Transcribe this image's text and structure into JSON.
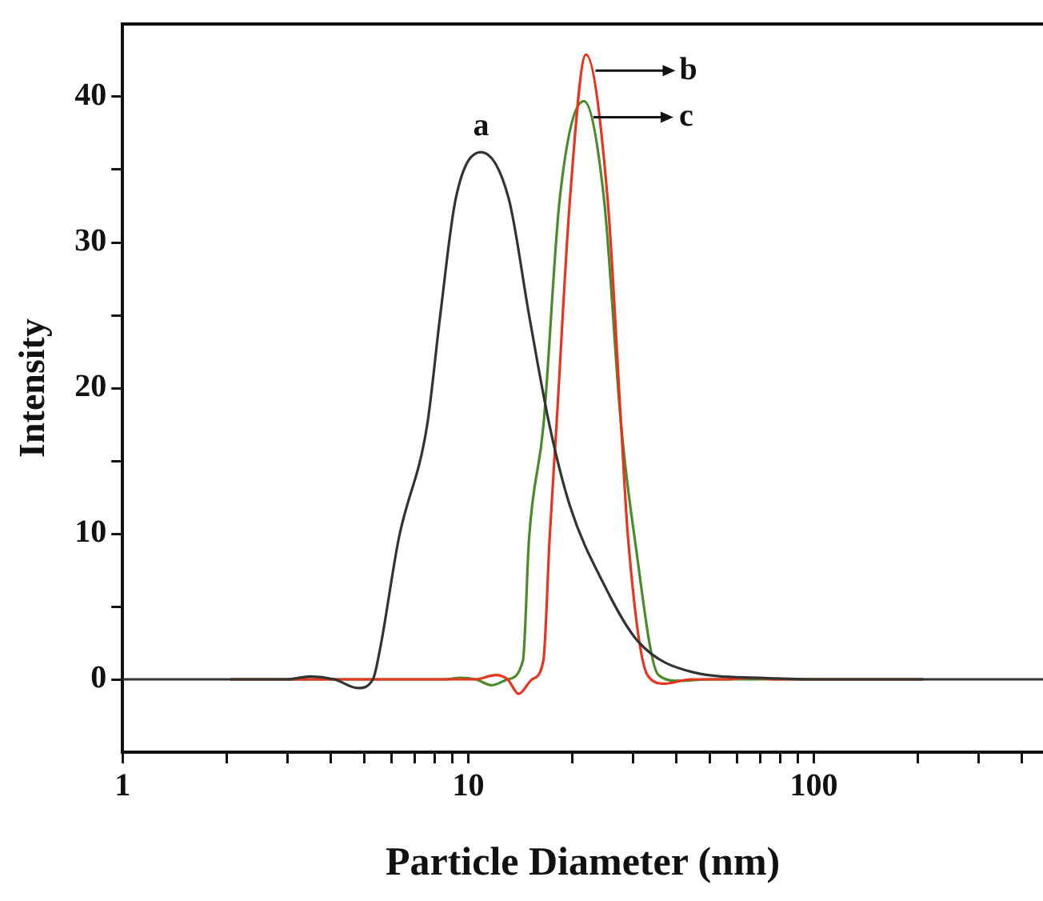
{
  "chart_data": {
    "type": "line",
    "xlabel": "Particle Diameter (nm)",
    "ylabel": "Intensity",
    "log": "x",
    "xlim": [
      1,
      460
    ],
    "ylim": [
      -5,
      45
    ],
    "xticks": [
      1,
      {
        "value": 2,
        "label": null
      },
      {
        "value": 3,
        "label": null
      },
      {
        "value": 4,
        "label": null
      },
      {
        "value": 5,
        "label": null
      },
      {
        "value": 6,
        "label": null
      },
      {
        "value": 7,
        "label": null
      },
      {
        "value": 8,
        "label": null
      },
      {
        "value": 9,
        "label": null
      },
      10,
      {
        "value": 20,
        "label": null
      },
      {
        "value": 30,
        "label": null
      },
      {
        "value": 40,
        "label": null
      },
      {
        "value": 50,
        "label": null
      },
      {
        "value": 60,
        "label": null
      },
      {
        "value": 70,
        "label": null
      },
      {
        "value": 80,
        "label": null
      },
      {
        "value": 90,
        "label": null
      },
      100,
      {
        "value": 200,
        "label": null
      },
      {
        "value": 300,
        "label": null
      },
      {
        "value": 400,
        "label": null
      }
    ],
    "yticks": [
      0,
      {
        "value": 5,
        "label": null
      },
      10,
      {
        "value": 15,
        "label": null
      },
      20,
      {
        "value": 25,
        "label": null
      },
      30,
      {
        "value": 35,
        "label": null
      },
      40
    ],
    "legend": false,
    "marker": "none",
    "line_style": "solid",
    "series": [
      {
        "color": "#333333",
        "x": [
          1,
          3,
          3.5,
          4.1,
          4.8,
          5.3,
          5.56,
          6.3,
          7.6,
          8.3,
          9.2,
          10.9,
          13.1,
          15,
          17.2,
          19.7,
          24.6,
          31,
          44.5,
          70,
          100,
          460
        ],
        "values": [
          0,
          0,
          0.2,
          0,
          -0.6,
          0,
          2.1,
          9.7,
          17.4,
          25,
          33,
          36.2,
          33,
          25,
          17.4,
          11.9,
          6.6,
          2.6,
          0.5,
          0.1,
          0,
          0
        ]
      },
      {
        "color": "#e8341c",
        "x": [
          2.05,
          9,
          10.5,
          12,
          13,
          14,
          15.3,
          16.5,
          17.2,
          18,
          19.7,
          21.9,
          25.3,
          27.7,
          29,
          33,
          37,
          44,
          55,
          65,
          80,
          207
        ],
        "values": [
          0,
          0,
          0,
          0.3,
          0,
          -1,
          0,
          1.3,
          9.7,
          17.4,
          33,
          42.9,
          33,
          17.4,
          9.7,
          0.3,
          -0.3,
          0,
          0,
          0.1,
          0,
          0
        ]
      },
      {
        "color": "#4a8a2a",
        "x": [
          2.05,
          8.5,
          9.5,
          10.5,
          11.7,
          13,
          14.4,
          15,
          16.5,
          18.4,
          21.6,
          24.7,
          27.7,
          30.3,
          35.5,
          40.7,
          50,
          207
        ],
        "values": [
          0,
          0,
          0.1,
          0,
          -0.4,
          0,
          1.3,
          9.7,
          17.4,
          33,
          39.7,
          33,
          17.4,
          9.7,
          0.3,
          -0.1,
          0,
          0
        ]
      }
    ],
    "annotations": [
      "a",
      {
        "text": "b",
        "x": 21.9,
        "y": 42.9
      },
      {
        "text": "c",
        "x": 21.6,
        "y": 39.7
      }
    ]
  }
}
